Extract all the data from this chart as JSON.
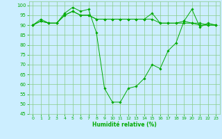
{
  "xlabel": "Humidité relative (%)",
  "ylim": [
    45,
    102
  ],
  "xlim": [
    -0.5,
    23.5
  ],
  "yticks": [
    45,
    50,
    55,
    60,
    65,
    70,
    75,
    80,
    85,
    90,
    95,
    100
  ],
  "xticks": [
    0,
    1,
    2,
    3,
    4,
    5,
    6,
    7,
    8,
    9,
    10,
    11,
    12,
    13,
    14,
    15,
    16,
    17,
    18,
    19,
    20,
    21,
    22,
    23
  ],
  "bg_color": "#cceeff",
  "grid_color": "#88cc88",
  "line_color": "#00aa00",
  "marker_color": "#00aa00",
  "series": [
    {
      "x": [
        0,
        1,
        2,
        3,
        4,
        5,
        6,
        7,
        8,
        9,
        10,
        11,
        12,
        13,
        14,
        15,
        16,
        17,
        18,
        19,
        20,
        21,
        22,
        23
      ],
      "y": [
        90,
        93,
        91,
        91,
        96,
        99,
        97,
        98,
        86,
        58,
        51,
        51,
        58,
        59,
        63,
        70,
        68,
        77,
        81,
        92,
        98,
        89,
        91,
        90
      ]
    },
    {
      "x": [
        0,
        1,
        2,
        3,
        4,
        5,
        6,
        7,
        8,
        9,
        10,
        11,
        12,
        13,
        14,
        15,
        16,
        17,
        18,
        19,
        20,
        21,
        22,
        23
      ],
      "y": [
        90,
        92,
        91,
        91,
        95,
        97,
        95,
        95,
        93,
        93,
        93,
        93,
        93,
        93,
        93,
        96,
        91,
        91,
        91,
        92,
        91,
        91,
        90,
        90
      ]
    },
    {
      "x": [
        0,
        1,
        2,
        3,
        4,
        5,
        6,
        7,
        8,
        9,
        10,
        11,
        12,
        13,
        14,
        15,
        16,
        17,
        18,
        19,
        20,
        21,
        22,
        23
      ],
      "y": [
        90,
        92,
        91,
        91,
        95,
        97,
        95,
        95,
        93,
        93,
        93,
        93,
        93,
        93,
        93,
        93,
        91,
        91,
        91,
        91,
        91,
        90,
        90,
        90
      ]
    }
  ]
}
